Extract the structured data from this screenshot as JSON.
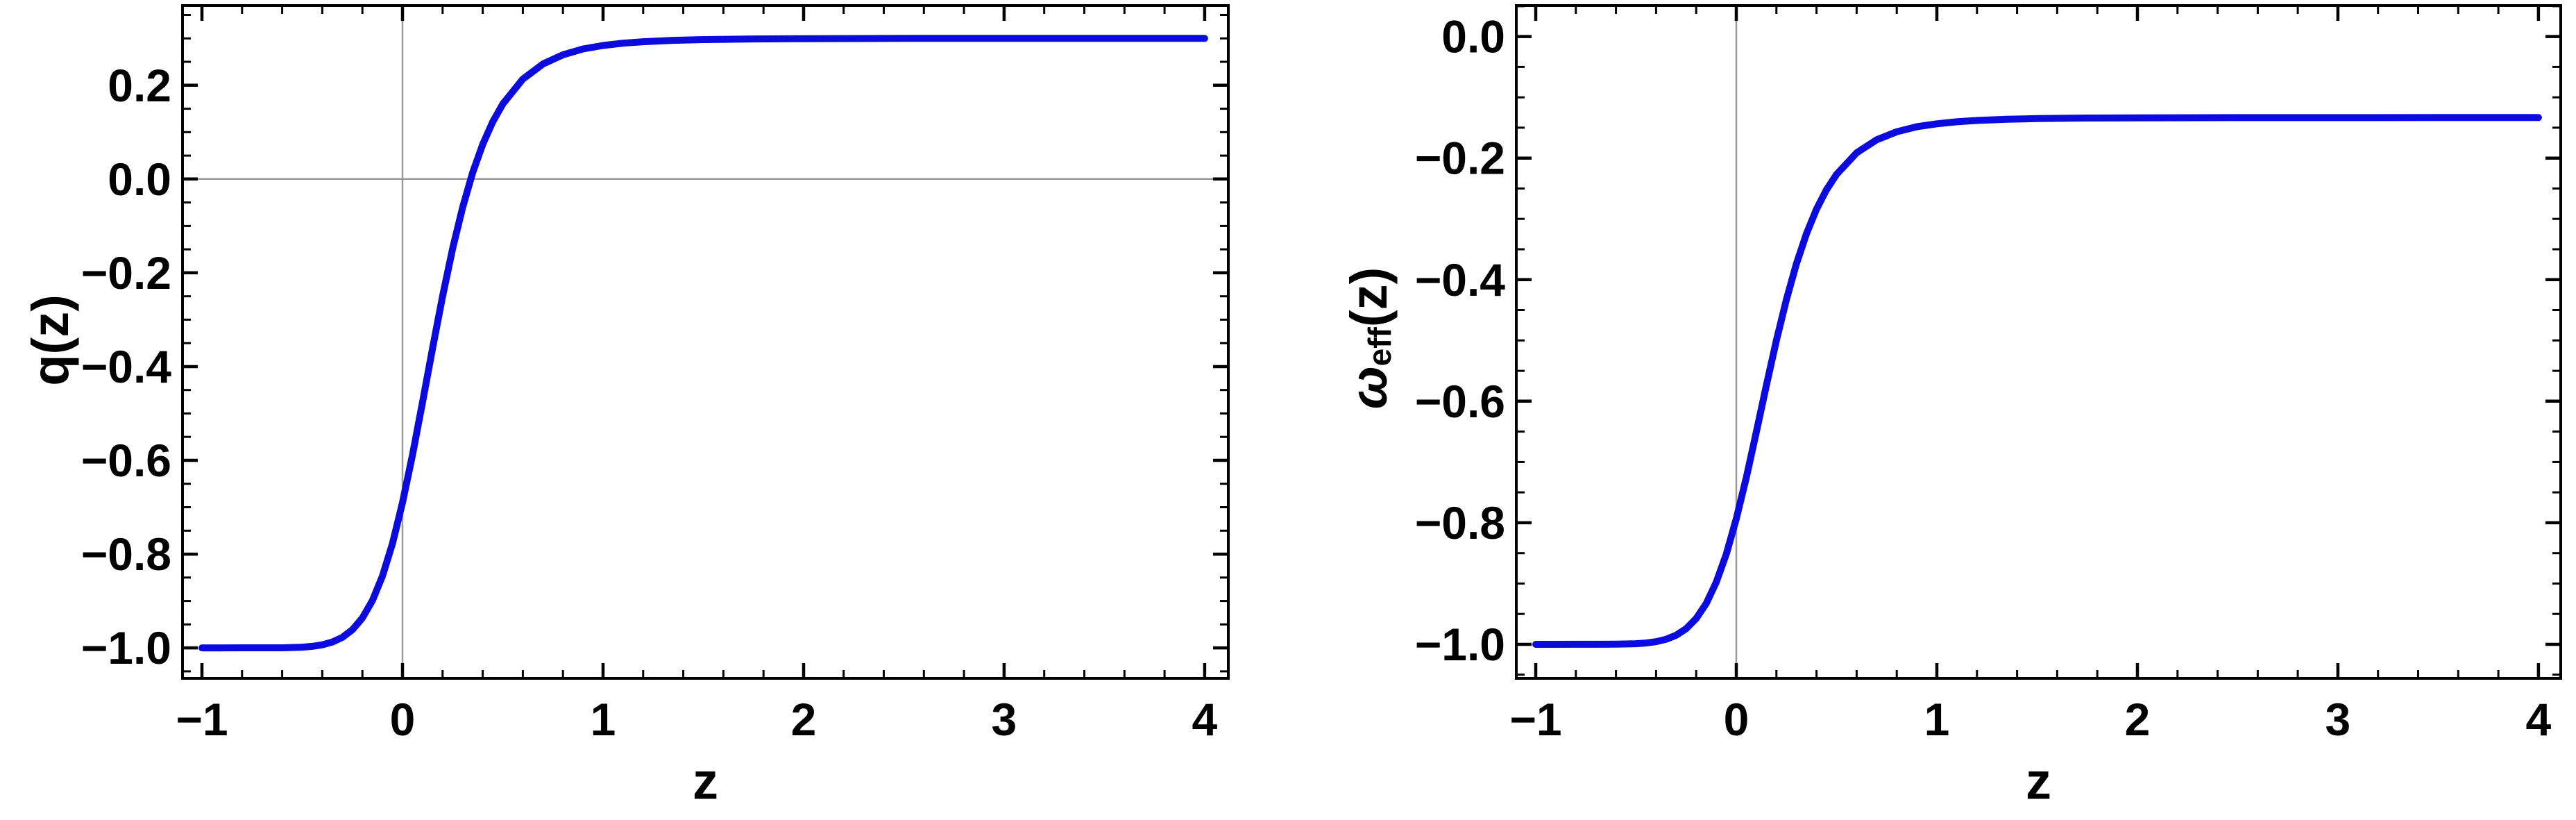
{
  "figure": {
    "background": "#ffffff",
    "frame_color": "#000000",
    "grid_color": "#9a9a9a",
    "curve_color": "#0b0be0",
    "tick_label_color": "#000000"
  },
  "chart_data": [
    {
      "type": "line",
      "name": "q-plot",
      "title": "",
      "xlabel": "z",
      "ylabel": "q(z)",
      "ylabel_parts": [
        {
          "t": "q(z)",
          "italic": false,
          "sub": false
        }
      ],
      "legend": "none",
      "grid": "zero-lines-only",
      "x_range": [
        -1.097,
        4.118
      ],
      "y_range": [
        -1.065,
        0.37
      ],
      "x_ticks": {
        "major": [
          -1,
          0,
          1,
          2,
          3,
          4
        ],
        "labels": [
          "−1",
          "0",
          "1",
          "2",
          "3",
          "4"
        ],
        "minor_step": 0.2
      },
      "y_ticks": {
        "major": [
          0.2,
          0.0,
          -0.2,
          -0.4,
          -0.6,
          -0.8,
          -1.0
        ],
        "labels": [
          "0.2",
          "0.0",
          "−0.2",
          "−0.4",
          "−0.6",
          "−0.8",
          "−1.0"
        ],
        "minor_step": 0.05
      },
      "gridlines": {
        "vertical_at_x": [
          0
        ],
        "horizontal_at_y": [
          0
        ]
      },
      "line_color": "#0b0be0",
      "asymptotes": {
        "low_z": -1.0,
        "high_z": 0.3
      },
      "x": [
        -1,
        -0.9,
        -0.8,
        -0.7,
        -0.6,
        -0.5,
        -0.45,
        -0.4,
        -0.35,
        -0.3,
        -0.25,
        -0.2,
        -0.15,
        -0.1,
        -0.05,
        0,
        0.05,
        0.1,
        0.15,
        0.2,
        0.25,
        0.3,
        0.35,
        0.4,
        0.45,
        0.5,
        0.6,
        0.7,
        0.8,
        0.9,
        1,
        1.1,
        1.2,
        1.35,
        1.5,
        1.75,
        2,
        2.5,
        3,
        3.5,
        4
      ],
      "y": [
        -1,
        -1,
        -0.9999,
        -0.9999,
        -0.9998,
        -0.9985,
        -0.9968,
        -0.9935,
        -0.9876,
        -0.9776,
        -0.9614,
        -0.9362,
        -0.899,
        -0.8467,
        -0.7772,
        -0.69,
        -0.5877,
        -0.4757,
        -0.3604,
        -0.2497,
        -0.1485,
        -0.0603,
        0.0137,
        0.074,
        0.122,
        0.16,
        0.2131,
        0.2453,
        0.265,
        0.2775,
        0.2848,
        0.2897,
        0.2929,
        0.2958,
        0.2975,
        0.2988,
        0.2994,
        0.2999,
        0.3,
        0.3,
        0.3
      ]
    },
    {
      "type": "line",
      "name": "omega-eff-plot",
      "title": "",
      "xlabel": "z",
      "ylabel": "ωeff(z)",
      "ylabel_parts": [
        {
          "t": "ω",
          "italic": true,
          "sub": false
        },
        {
          "t": "eff",
          "italic": false,
          "sub": true
        },
        {
          "t": "(z)",
          "italic": false,
          "sub": false
        }
      ],
      "legend": "none",
      "grid": "zero-lines-only",
      "x_range": [
        -1.097,
        4.111
      ],
      "y_range": [
        -1.056,
        0.051
      ],
      "x_ticks": {
        "major": [
          -1,
          0,
          1,
          2,
          3,
          4
        ],
        "labels": [
          "−1",
          "0",
          "1",
          "2",
          "3",
          "4"
        ],
        "minor_step": 0.2
      },
      "y_ticks": {
        "major": [
          0.0,
          -0.2,
          -0.4,
          -0.6,
          -0.8,
          -1.0
        ],
        "labels": [
          "0.0",
          "−0.2",
          "−0.4",
          "−0.6",
          "−0.8",
          "−1.0"
        ],
        "minor_step": 0.05
      },
      "gridlines": {
        "vertical_at_x": [
          0
        ],
        "horizontal_at_y": []
      },
      "line_color": "#0b0be0",
      "asymptotes": {
        "low_z": -1.0,
        "high_z": -0.1333
      },
      "x": [
        -1,
        -0.9,
        -0.8,
        -0.7,
        -0.6,
        -0.5,
        -0.45,
        -0.4,
        -0.35,
        -0.3,
        -0.25,
        -0.2,
        -0.15,
        -0.1,
        -0.05,
        0,
        0.05,
        0.1,
        0.15,
        0.2,
        0.25,
        0.3,
        0.35,
        0.4,
        0.45,
        0.5,
        0.6,
        0.7,
        0.8,
        0.9,
        1,
        1.1,
        1.2,
        1.35,
        1.5,
        1.75,
        2,
        2.5,
        3,
        3.5,
        4
      ],
      "y": [
        -1,
        -1,
        -0.9999,
        -0.9999,
        -0.9998,
        -0.999,
        -0.9978,
        -0.9957,
        -0.9917,
        -0.9851,
        -0.9742,
        -0.9575,
        -0.9327,
        -0.8978,
        -0.8515,
        -0.7933,
        -0.7251,
        -0.6504,
        -0.5736,
        -0.4998,
        -0.4323,
        -0.3735,
        -0.3242,
        -0.284,
        -0.252,
        -0.2267,
        -0.1913,
        -0.1698,
        -0.1567,
        -0.1483,
        -0.1435,
        -0.1402,
        -0.1381,
        -0.1361,
        -0.135,
        -0.1341,
        -0.1337,
        -0.1334,
        -0.1334,
        -0.1333,
        -0.1333
      ]
    }
  ]
}
